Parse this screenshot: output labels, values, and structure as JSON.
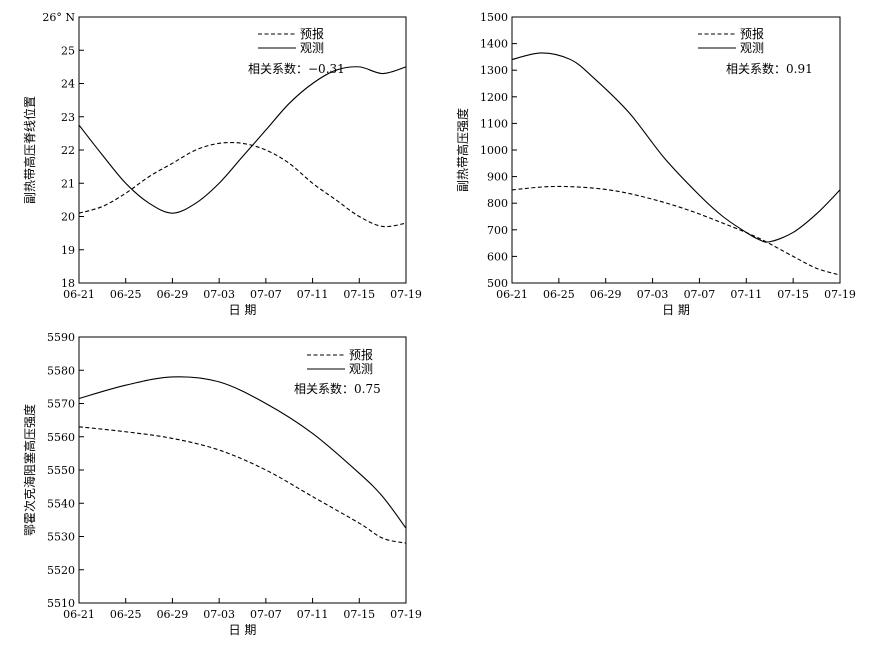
{
  "chart_data": [
    {
      "type": "line",
      "categories": [
        "06-21",
        "06-25",
        "06-29",
        "07-03",
        "07-07",
        "07-11",
        "07-15",
        "07-19"
      ],
      "x": [
        0,
        4,
        8,
        12,
        16,
        20,
        24,
        28
      ],
      "xlim": [
        0,
        28
      ],
      "ylim": [
        18,
        26
      ],
      "yticks": [
        "18",
        "19",
        "20",
        "21",
        "22",
        "23",
        "24",
        "25",
        "26° N"
      ],
      "ylabel": "副热带高压脊线位置",
      "xlabel": "日  期",
      "correlation": "相关系数：−0.31",
      "series": [
        {
          "name": "预报",
          "style": "dashed",
          "points": [
            [
              0,
              20.1
            ],
            [
              2,
              20.3
            ],
            [
              4,
              20.7
            ],
            [
              6,
              21.2
            ],
            [
              8,
              21.6
            ],
            [
              10,
              22.0
            ],
            [
              12,
              22.2
            ],
            [
              14,
              22.2
            ],
            [
              16,
              22.0
            ],
            [
              18,
              21.6
            ],
            [
              20,
              21.0
            ],
            [
              22,
              20.5
            ],
            [
              24,
              20.0
            ],
            [
              26,
              19.7
            ],
            [
              28,
              19.8
            ]
          ]
        },
        {
          "name": "观测",
          "style": "solid",
          "points": [
            [
              0,
              22.75
            ],
            [
              2,
              21.85
            ],
            [
              4,
              21.0
            ],
            [
              6,
              20.4
            ],
            [
              8,
              20.1
            ],
            [
              10,
              20.4
            ],
            [
              12,
              21.0
            ],
            [
              14,
              21.8
            ],
            [
              16,
              22.6
            ],
            [
              18,
              23.4
            ],
            [
              20,
              24.0
            ],
            [
              22,
              24.4
            ],
            [
              24,
              24.5
            ],
            [
              26,
              24.3
            ],
            [
              28,
              24.5
            ]
          ]
        }
      ]
    },
    {
      "type": "line",
      "categories": [
        "06-21",
        "06-25",
        "06-29",
        "07-03",
        "07-07",
        "07-11",
        "07-15",
        "07-19"
      ],
      "x": [
        0,
        4,
        8,
        12,
        16,
        20,
        24,
        28
      ],
      "xlim": [
        0,
        28
      ],
      "ylim": [
        500,
        1500
      ],
      "yticks": [
        "500",
        "600",
        "700",
        "800",
        "900",
        "1000",
        "1100",
        "1200",
        "1300",
        "1400",
        "1500"
      ],
      "ylabel": "副热带高压强度",
      "xlabel": "日  期",
      "correlation": "相关系数：0.91",
      "series": [
        {
          "name": "预报",
          "style": "dashed",
          "points": [
            [
              0,
              850
            ],
            [
              3,
              862
            ],
            [
              6,
              860
            ],
            [
              9,
              845
            ],
            [
              12,
              815
            ],
            [
              15,
              775
            ],
            [
              18,
              725
            ],
            [
              21,
              670
            ],
            [
              24,
              600
            ],
            [
              26,
              555
            ],
            [
              28,
              530
            ]
          ]
        },
        {
          "name": "观测",
          "style": "solid",
          "points": [
            [
              0,
              1340
            ],
            [
              2.5,
              1365
            ],
            [
              5,
              1340
            ],
            [
              7,
              1270
            ],
            [
              10,
              1140
            ],
            [
              13,
              970
            ],
            [
              16,
              830
            ],
            [
              18,
              750
            ],
            [
              20,
              690
            ],
            [
              21,
              665
            ],
            [
              22,
              655
            ],
            [
              24,
              690
            ],
            [
              26,
              760
            ],
            [
              28,
              850
            ]
          ]
        }
      ]
    },
    {
      "type": "line",
      "categories": [
        "06-21",
        "06-25",
        "06-29",
        "07-03",
        "07-07",
        "07-11",
        "07-15",
        "07-19"
      ],
      "x": [
        0,
        4,
        8,
        12,
        16,
        20,
        24,
        28
      ],
      "xlim": [
        0,
        28
      ],
      "ylim": [
        5510,
        5590
      ],
      "yticks": [
        "5510",
        "5520",
        "5530",
        "5540",
        "5550",
        "5560",
        "5570",
        "5580",
        "5590"
      ],
      "ylabel": "鄂霍次克海阻塞高压强度",
      "xlabel": "日  期",
      "correlation": "相关系数：0.75",
      "series": [
        {
          "name": "预报",
          "style": "dashed",
          "points": [
            [
              0,
              5563
            ],
            [
              4,
              5561.5
            ],
            [
              8,
              5559.5
            ],
            [
              12,
              5556
            ],
            [
              16,
              5550
            ],
            [
              20,
              5542
            ],
            [
              24,
              5534
            ],
            [
              26,
              5529.5
            ],
            [
              28,
              5528
            ]
          ]
        },
        {
          "name": "观测",
          "style": "solid",
          "points": [
            [
              0,
              5571.5
            ],
            [
              4,
              5575.5
            ],
            [
              8,
              5578
            ],
            [
              12,
              5576.5
            ],
            [
              16,
              5570
            ],
            [
              20,
              5561
            ],
            [
              24,
              5549
            ],
            [
              26,
              5542
            ],
            [
              28,
              5532.5
            ]
          ]
        }
      ]
    }
  ]
}
